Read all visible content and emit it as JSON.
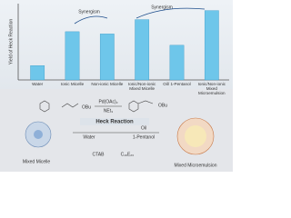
{
  "chart_data": {
    "type": "bar",
    "y_label": "Yield of Heck Reaction",
    "categories": [
      "Water",
      "Ionic Micelle",
      "Non-ionic Micelle",
      "Ionic/Non-ionic Mixed Micelle",
      "Oil/ 1-Pentanol",
      "Ionic/Non-ionic Mixed Microemulsion"
    ],
    "values": [
      19,
      64,
      61,
      80,
      46,
      92
    ],
    "color": "#6ec6ea",
    "ylim": [
      0,
      100
    ],
    "annotations": [
      "Synergism",
      "Synergism",
      "Pd(OAc)₂",
      "NEt₃",
      "OBu",
      "OBu",
      "Heck Reaction",
      "Water",
      "Oil",
      "1-Pentanol",
      "CTAB",
      "C₁₆E₂₀",
      "Mixed Micelle",
      "Mixed Microemulsion"
    ]
  }
}
